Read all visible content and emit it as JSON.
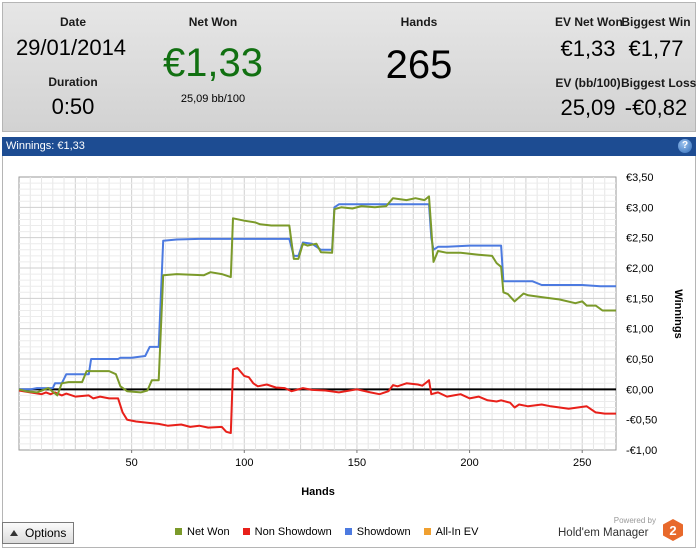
{
  "summary": {
    "date_label": "Date",
    "date_value": "29/01/2014",
    "duration_label": "Duration",
    "duration_value": "0:50",
    "net_won_label": "Net Won",
    "net_won_value": "€1,33",
    "net_won_sub": "25,09 bb/100",
    "hands_label": "Hands",
    "hands_value": "265",
    "ev_net_won_label": "EV Net Won",
    "ev_net_won_value": "€1,33",
    "biggest_win_label": "Biggest Win",
    "biggest_win_value": "€1,77",
    "ev_bb_label": "EV (bb/100)",
    "ev_bb_value": "25,09",
    "biggest_loss_label": "Biggest Loss",
    "biggest_loss_value": "-€0,82"
  },
  "panel": {
    "title": "Winnings:  €1,33",
    "help_icon": "question-icon"
  },
  "colors": {
    "net_won": "#7b9a2a",
    "non_showdown": "#e8201a",
    "showdown": "#4c7ae0",
    "all_in_ev": "#f0a030",
    "net_won_text": "#117011",
    "header_bar": "#1d4c92"
  },
  "chart_data": {
    "type": "line",
    "xlabel": "Hands",
    "ylabel": "Winnings",
    "xlim": [
      0,
      265
    ],
    "ylim": [
      -1.0,
      3.5
    ],
    "x_ticks": [
      50,
      100,
      150,
      200,
      250
    ],
    "y_ticks": [
      {
        "v": 3.5,
        "label": "€3,50"
      },
      {
        "v": 3.0,
        "label": "€3,00"
      },
      {
        "v": 2.5,
        "label": "€2,50"
      },
      {
        "v": 2.0,
        "label": "€2,00"
      },
      {
        "v": 1.5,
        "label": "€1,50"
      },
      {
        "v": 1.0,
        "label": "€1,00"
      },
      {
        "v": 0.5,
        "label": "€0,50"
      },
      {
        "v": 0.0,
        "label": "€0,00"
      },
      {
        "v": -0.5,
        "label": "-€0,50"
      },
      {
        "v": -1.0,
        "label": "-€1,00"
      }
    ],
    "grid": true,
    "series": [
      {
        "name": "Net Won",
        "color": "#7b9a2a",
        "points": [
          [
            0,
            0
          ],
          [
            3,
            -0.03
          ],
          [
            8,
            -0.05
          ],
          [
            13,
            0.02
          ],
          [
            17,
            -0.1
          ],
          [
            19,
            0.1
          ],
          [
            22,
            0.12
          ],
          [
            28,
            0.12
          ],
          [
            30,
            0.3
          ],
          [
            40,
            0.3
          ],
          [
            43,
            0.25
          ],
          [
            45,
            0.05
          ],
          [
            48,
            -0.03
          ],
          [
            54,
            -0.05
          ],
          [
            57,
            -0.02
          ],
          [
            59,
            0.15
          ],
          [
            62,
            0.15
          ],
          [
            64,
            1.88
          ],
          [
            70,
            1.9
          ],
          [
            82,
            1.88
          ],
          [
            85,
            1.93
          ],
          [
            90,
            1.9
          ],
          [
            94,
            1.85
          ],
          [
            95,
            2.82
          ],
          [
            100,
            2.78
          ],
          [
            105,
            2.75
          ],
          [
            107,
            2.72
          ],
          [
            112,
            2.7
          ],
          [
            120,
            2.7
          ],
          [
            122,
            2.15
          ],
          [
            124,
            2.15
          ],
          [
            126,
            2.4
          ],
          [
            128,
            2.37
          ],
          [
            132,
            2.4
          ],
          [
            134,
            2.26
          ],
          [
            139,
            2.25
          ],
          [
            140,
            2.97
          ],
          [
            143,
            3.0
          ],
          [
            148,
            2.98
          ],
          [
            152,
            3.02
          ],
          [
            158,
            3.0
          ],
          [
            163,
            3.02
          ],
          [
            166,
            3.15
          ],
          [
            172,
            3.12
          ],
          [
            176,
            3.15
          ],
          [
            180,
            3.12
          ],
          [
            182,
            3.18
          ],
          [
            183,
            2.65
          ],
          [
            184,
            2.1
          ],
          [
            186,
            2.28
          ],
          [
            190,
            2.25
          ],
          [
            196,
            2.25
          ],
          [
            204,
            2.22
          ],
          [
            210,
            2.2
          ],
          [
            212,
            2.08
          ],
          [
            214,
            2.02
          ],
          [
            215,
            1.6
          ],
          [
            217,
            1.57
          ],
          [
            220,
            1.45
          ],
          [
            224,
            1.58
          ],
          [
            226,
            1.55
          ],
          [
            232,
            1.52
          ],
          [
            240,
            1.48
          ],
          [
            247,
            1.42
          ],
          [
            250,
            1.45
          ],
          [
            252,
            1.38
          ],
          [
            256,
            1.38
          ],
          [
            259,
            1.3
          ],
          [
            265,
            1.3
          ]
        ]
      },
      {
        "name": "Non Showdown",
        "color": "#e8201a",
        "points": [
          [
            0,
            -0.02
          ],
          [
            5,
            -0.05
          ],
          [
            10,
            -0.08
          ],
          [
            12,
            -0.05
          ],
          [
            14,
            -0.08
          ],
          [
            16,
            -0.05
          ],
          [
            19,
            -0.1
          ],
          [
            21,
            -0.07
          ],
          [
            25,
            -0.12
          ],
          [
            31,
            -0.1
          ],
          [
            33,
            -0.15
          ],
          [
            36,
            -0.12
          ],
          [
            40,
            -0.15
          ],
          [
            44,
            -0.15
          ],
          [
            46,
            -0.38
          ],
          [
            48,
            -0.5
          ],
          [
            52,
            -0.53
          ],
          [
            57,
            -0.55
          ],
          [
            62,
            -0.57
          ],
          [
            66,
            -0.6
          ],
          [
            72,
            -0.58
          ],
          [
            76,
            -0.62
          ],
          [
            80,
            -0.6
          ],
          [
            84,
            -0.63
          ],
          [
            90,
            -0.62
          ],
          [
            92,
            -0.7
          ],
          [
            94,
            -0.72
          ],
          [
            95,
            0.33
          ],
          [
            97,
            0.35
          ],
          [
            100,
            0.22
          ],
          [
            102,
            0.2
          ],
          [
            104,
            0.1
          ],
          [
            106,
            0.05
          ],
          [
            110,
            0.08
          ],
          [
            114,
            0.03
          ],
          [
            118,
            0.02
          ],
          [
            121,
            -0.03
          ],
          [
            126,
            0.02
          ],
          [
            130,
            -0.01
          ],
          [
            136,
            -0.02
          ],
          [
            142,
            -0.05
          ],
          [
            150,
            0.0
          ],
          [
            156,
            -0.05
          ],
          [
            160,
            -0.08
          ],
          [
            164,
            -0.03
          ],
          [
            166,
            0.07
          ],
          [
            168,
            0.05
          ],
          [
            172,
            0.1
          ],
          [
            177,
            0.08
          ],
          [
            179,
            0.06
          ],
          [
            181,
            0.12
          ],
          [
            182,
            0.15
          ],
          [
            183,
            -0.08
          ],
          [
            186,
            -0.05
          ],
          [
            190,
            -0.12
          ],
          [
            193,
            -0.1
          ],
          [
            196,
            -0.08
          ],
          [
            200,
            -0.15
          ],
          [
            204,
            -0.12
          ],
          [
            208,
            -0.18
          ],
          [
            212,
            -0.2
          ],
          [
            214,
            -0.18
          ],
          [
            218,
            -0.22
          ],
          [
            220,
            -0.3
          ],
          [
            222,
            -0.25
          ],
          [
            226,
            -0.28
          ],
          [
            232,
            -0.25
          ],
          [
            236,
            -0.28
          ],
          [
            240,
            -0.3
          ],
          [
            244,
            -0.32
          ],
          [
            248,
            -0.3
          ],
          [
            252,
            -0.28
          ],
          [
            256,
            -0.38
          ],
          [
            260,
            -0.4
          ],
          [
            265,
            -0.4
          ]
        ]
      },
      {
        "name": "Showdown",
        "color": "#4c7ae0",
        "points": [
          [
            0,
            0
          ],
          [
            5,
            0
          ],
          [
            8,
            0.02
          ],
          [
            12,
            0.02
          ],
          [
            15,
            0.02
          ],
          [
            16,
            0.1
          ],
          [
            19,
            0.1
          ],
          [
            21,
            0.25
          ],
          [
            25,
            0.25
          ],
          [
            31,
            0.25
          ],
          [
            32,
            0.5
          ],
          [
            40,
            0.5
          ],
          [
            44,
            0.5
          ],
          [
            45,
            0.52
          ],
          [
            50,
            0.52
          ],
          [
            56,
            0.55
          ],
          [
            58,
            0.7
          ],
          [
            60,
            0.7
          ],
          [
            62,
            0.7
          ],
          [
            64,
            2.45
          ],
          [
            70,
            2.47
          ],
          [
            80,
            2.48
          ],
          [
            90,
            2.48
          ],
          [
            100,
            2.48
          ],
          [
            110,
            2.48
          ],
          [
            120,
            2.48
          ],
          [
            122,
            2.2
          ],
          [
            124,
            2.2
          ],
          [
            126,
            2.42
          ],
          [
            130,
            2.4
          ],
          [
            134,
            2.3
          ],
          [
            139,
            2.3
          ],
          [
            140,
            3.0
          ],
          [
            142,
            3.05
          ],
          [
            150,
            3.05
          ],
          [
            156,
            3.05
          ],
          [
            160,
            3.05
          ],
          [
            166,
            3.05
          ],
          [
            172,
            3.05
          ],
          [
            180,
            3.05
          ],
          [
            182,
            3.05
          ],
          [
            183,
            2.5
          ],
          [
            184,
            2.3
          ],
          [
            186,
            2.35
          ],
          [
            190,
            2.35
          ],
          [
            200,
            2.37
          ],
          [
            206,
            2.37
          ],
          [
            210,
            2.37
          ],
          [
            214,
            2.37
          ],
          [
            215,
            1.78
          ],
          [
            220,
            1.78
          ],
          [
            228,
            1.78
          ],
          [
            232,
            1.72
          ],
          [
            240,
            1.72
          ],
          [
            250,
            1.72
          ],
          [
            258,
            1.7
          ],
          [
            265,
            1.7
          ]
        ]
      },
      {
        "name": "All-In EV",
        "color": "#f0a030",
        "points": []
      }
    ],
    "legend": [
      "Net Won",
      "Non Showdown",
      "Showdown",
      "All-In EV"
    ],
    "legend_position": "bottom"
  },
  "footer": {
    "options_label": "Options",
    "powered_by": "Powered by",
    "brand_name": "Hold'em Manager",
    "brand_logo_text": "2"
  }
}
